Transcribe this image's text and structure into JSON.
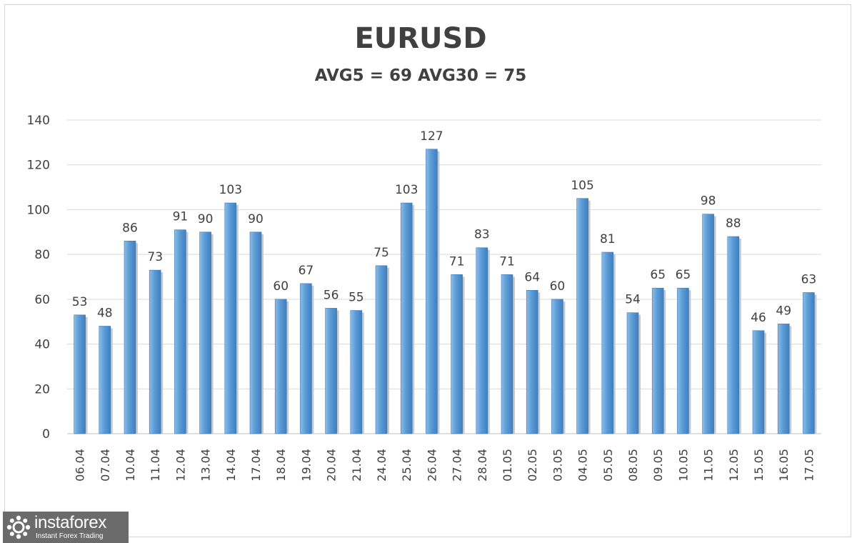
{
  "chart_data": {
    "type": "bar",
    "title": "EURUSD",
    "subtitle": "AVG5 = 69 AVG30 = 75",
    "categories": [
      "06.04",
      "07.04",
      "10.04",
      "11.04",
      "12.04",
      "13.04",
      "14.04",
      "17.04",
      "18.04",
      "19.04",
      "20.04",
      "21.04",
      "24.04",
      "25.04",
      "26.04",
      "27.04",
      "28.04",
      "01.05",
      "02.05",
      "03.05",
      "04.05",
      "05.05",
      "08.05",
      "09.05",
      "10.05",
      "11.05",
      "12.05",
      "15.05",
      "16.05",
      "17.05"
    ],
    "values": [
      53,
      48,
      86,
      73,
      91,
      90,
      103,
      90,
      60,
      67,
      56,
      55,
      75,
      103,
      127,
      71,
      83,
      71,
      64,
      60,
      105,
      81,
      54,
      65,
      65,
      98,
      88,
      46,
      49,
      63
    ],
    "yticks": [
      0,
      20,
      40,
      60,
      80,
      100,
      120,
      140
    ],
    "ylim": [
      0,
      140
    ],
    "grid": true,
    "legend": "none",
    "xlabel": "",
    "ylabel": "",
    "colors": {
      "bar": "#5b9bd5",
      "bar_light": "#8dbde8",
      "bar_dark": "#3a78b8",
      "grid": "#d9d9d9",
      "text": "#404040"
    }
  },
  "watermark": {
    "name": "instaforex",
    "tagline": "Instant Forex Trading",
    "background": "#6b6b6b"
  }
}
